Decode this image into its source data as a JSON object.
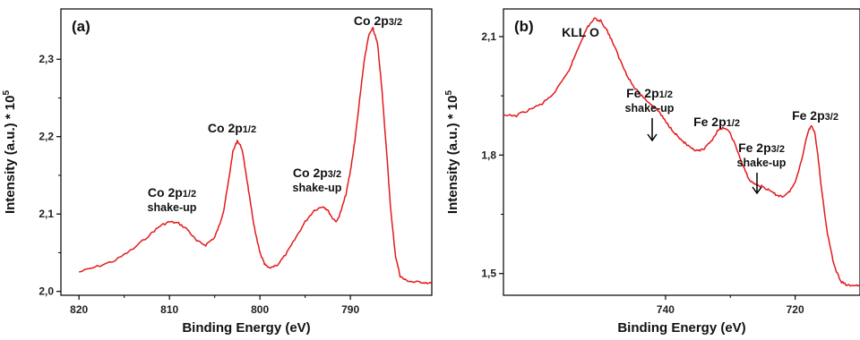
{
  "chart_data": [
    {
      "type": "line",
      "panel_label": "(a)",
      "xlabel": "Binding Energy (eV)",
      "ylabel": "Intensity (a.u.) * 10",
      "ylabel_exponent": "5",
      "x_reversed": true,
      "xlim": [
        822,
        781
      ],
      "ylim": [
        1.995,
        2.365
      ],
      "x_ticks": [
        {
          "value": 820,
          "label": "820"
        },
        {
          "value": 810,
          "label": "810"
        },
        {
          "value": 800,
          "label": "800"
        },
        {
          "value": 790,
          "label": "790"
        }
      ],
      "y_ticks": [
        {
          "value": 2.0,
          "label": "2,0"
        },
        {
          "value": 2.1,
          "label": "2,1"
        },
        {
          "value": 2.2,
          "label": "2,2"
        },
        {
          "value": 2.3,
          "label": "2,3"
        }
      ],
      "color": "#e31a1c",
      "series": [
        {
          "x": [
            820,
            818,
            816,
            814,
            812,
            811,
            810,
            809,
            808,
            807,
            806,
            805,
            804.5,
            804,
            803.5,
            803,
            802.5,
            802,
            801.5,
            801,
            800.5,
            800,
            799.5,
            799,
            798,
            797,
            796,
            795,
            794,
            793,
            792.5,
            792,
            791.5,
            791,
            790.5,
            790,
            789.5,
            789,
            788.5,
            788,
            787.5,
            787,
            786.5,
            786,
            785.5,
            785,
            784.5,
            784,
            783,
            782,
            781
          ],
          "y": [
            2.025,
            2.032,
            2.04,
            2.055,
            2.075,
            2.085,
            2.09,
            2.088,
            2.08,
            2.065,
            2.06,
            2.07,
            2.085,
            2.105,
            2.14,
            2.18,
            2.195,
            2.185,
            2.15,
            2.11,
            2.075,
            2.05,
            2.035,
            2.03,
            2.035,
            2.05,
            2.07,
            2.09,
            2.105,
            2.11,
            2.105,
            2.095,
            2.09,
            2.105,
            2.125,
            2.155,
            2.195,
            2.245,
            2.295,
            2.33,
            2.34,
            2.32,
            2.26,
            2.18,
            2.1,
            2.045,
            2.02,
            2.015,
            2.012,
            2.012,
            2.01
          ]
        }
      ],
      "annotations": [
        {
          "id": "co-2p32",
          "main": "Co 2p",
          "sub": "3/2",
          "line2": ""
        },
        {
          "id": "co-2p12",
          "main": "Co 2p",
          "sub": "1/2",
          "line2": ""
        },
        {
          "id": "co-2p32-shake",
          "main": "Co 2p",
          "sub": "3/2",
          "line2": "shake-up"
        },
        {
          "id": "co-2p12-shake",
          "main": "Co 2p",
          "sub": "1/2",
          "line2": "shake-up"
        }
      ]
    },
    {
      "type": "line",
      "panel_label": "(b)",
      "xlabel": "Binding Energy (eV)",
      "ylabel": "Intensity (a.u.) * 10",
      "ylabel_exponent": "5",
      "x_reversed": true,
      "xlim": [
        765,
        710
      ],
      "ylim": [
        1.445,
        2.17
      ],
      "x_ticks": [
        {
          "value": 740,
          "label": "740"
        },
        {
          "value": 720,
          "label": "720"
        }
      ],
      "y_ticks": [
        {
          "value": 1.5,
          "label": "1,5"
        },
        {
          "value": 1.8,
          "label": "1,8"
        },
        {
          "value": 2.1,
          "label": "2,1"
        }
      ],
      "color": "#e31a1c",
      "series": [
        {
          "x": [
            765,
            763,
            761,
            759,
            757,
            755,
            754,
            753,
            752,
            751,
            750,
            749,
            748,
            747,
            746,
            745,
            744,
            743,
            742,
            741,
            740,
            739,
            738,
            737,
            736,
            735,
            734,
            733,
            732,
            731,
            730,
            729,
            728,
            727,
            726,
            725,
            724,
            723,
            722,
            721,
            720,
            719,
            718,
            717.5,
            717,
            716.5,
            716,
            715,
            714,
            713,
            712,
            711,
            710
          ],
          "y": [
            1.9,
            1.9,
            1.915,
            1.93,
            1.96,
            2.01,
            2.05,
            2.09,
            2.125,
            2.145,
            2.14,
            2.115,
            2.08,
            2.04,
            2.005,
            1.975,
            1.955,
            1.94,
            1.925,
            1.91,
            1.885,
            1.865,
            1.845,
            1.83,
            1.815,
            1.81,
            1.815,
            1.835,
            1.86,
            1.87,
            1.855,
            1.815,
            1.77,
            1.735,
            1.725,
            1.72,
            1.71,
            1.7,
            1.695,
            1.705,
            1.73,
            1.79,
            1.86,
            1.875,
            1.86,
            1.8,
            1.72,
            1.6,
            1.52,
            1.48,
            1.47,
            1.47,
            1.47
          ]
        }
      ],
      "annotations": [
        {
          "id": "kll-o",
          "main": "KLL O",
          "sub": "",
          "line2": ""
        },
        {
          "id": "fe-2p12-shake",
          "main": "Fe 2p",
          "sub": "1/2",
          "line2": "shake-up"
        },
        {
          "id": "fe-2p12",
          "main": "Fe 2p",
          "sub": "1/2",
          "line2": ""
        },
        {
          "id": "fe-2p32-shake",
          "main": "Fe 2p",
          "sub": "3/2",
          "line2": "shake-up"
        },
        {
          "id": "fe-2p32",
          "main": "Fe 2p",
          "sub": "3/2",
          "line2": ""
        }
      ]
    }
  ]
}
